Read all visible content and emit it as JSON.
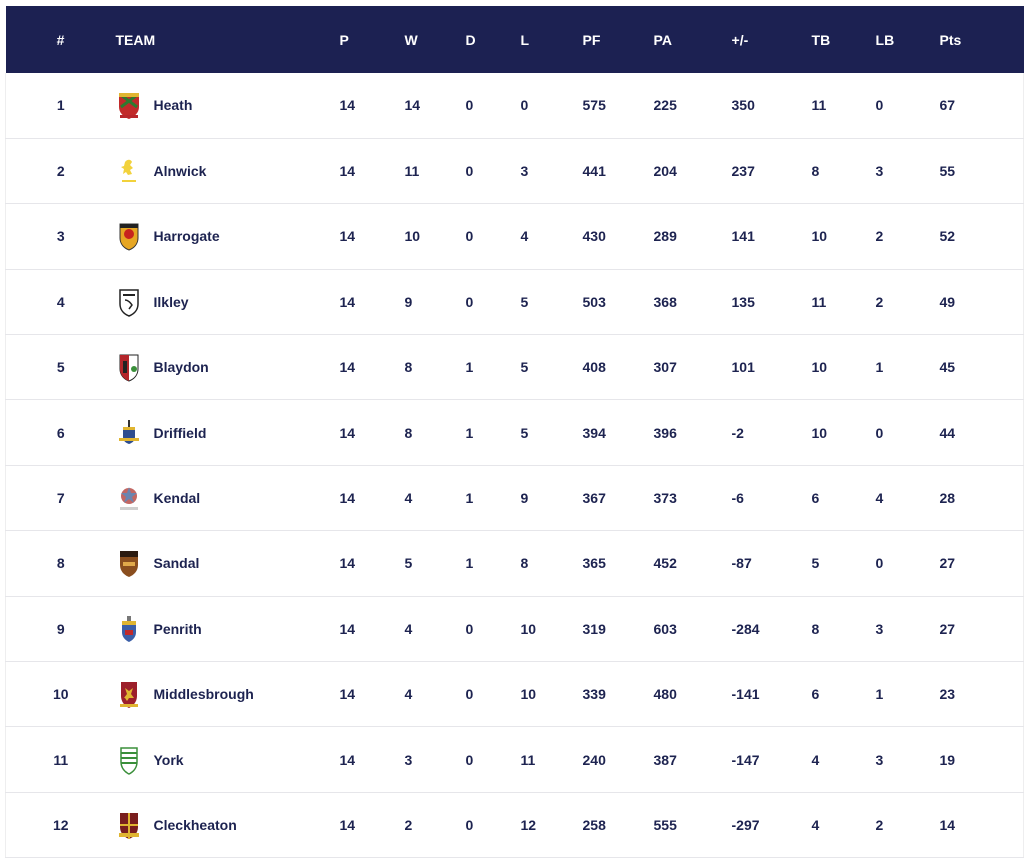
{
  "headers": {
    "pos": "#",
    "team": "TEAM",
    "p": "P",
    "w": "W",
    "d": "D",
    "l": "L",
    "pf": "PF",
    "pa": "PA",
    "diff": "+/-",
    "tb": "TB",
    "lb": "LB",
    "pts": "Pts"
  },
  "rows": [
    {
      "pos": "1",
      "team": "Heath",
      "crest": "heath-crest-icon",
      "p": "14",
      "w": "14",
      "d": "0",
      "l": "0",
      "pf": "575",
      "pa": "225",
      "diff": "350",
      "tb": "11",
      "lb": "0",
      "pts": "67"
    },
    {
      "pos": "2",
      "team": "Alnwick",
      "crest": "alnwick-crest-icon",
      "p": "14",
      "w": "11",
      "d": "0",
      "l": "3",
      "pf": "441",
      "pa": "204",
      "diff": "237",
      "tb": "8",
      "lb": "3",
      "pts": "55"
    },
    {
      "pos": "3",
      "team": "Harrogate",
      "crest": "harrogate-crest-icon",
      "p": "14",
      "w": "10",
      "d": "0",
      "l": "4",
      "pf": "430",
      "pa": "289",
      "diff": "141",
      "tb": "10",
      "lb": "2",
      "pts": "52"
    },
    {
      "pos": "4",
      "team": "Ilkley",
      "crest": "ilkley-crest-icon",
      "p": "14",
      "w": "9",
      "d": "0",
      "l": "5",
      "pf": "503",
      "pa": "368",
      "diff": "135",
      "tb": "11",
      "lb": "2",
      "pts": "49"
    },
    {
      "pos": "5",
      "team": "Blaydon",
      "crest": "blaydon-crest-icon",
      "p": "14",
      "w": "8",
      "d": "1",
      "l": "5",
      "pf": "408",
      "pa": "307",
      "diff": "101",
      "tb": "10",
      "lb": "1",
      "pts": "45"
    },
    {
      "pos": "6",
      "team": "Driffield",
      "crest": "driffield-crest-icon",
      "p": "14",
      "w": "8",
      "d": "1",
      "l": "5",
      "pf": "394",
      "pa": "396",
      "diff": "-2",
      "tb": "10",
      "lb": "0",
      "pts": "44"
    },
    {
      "pos": "7",
      "team": "Kendal",
      "crest": "kendal-crest-icon",
      "p": "14",
      "w": "4",
      "d": "1",
      "l": "9",
      "pf": "367",
      "pa": "373",
      "diff": "-6",
      "tb": "6",
      "lb": "4",
      "pts": "28"
    },
    {
      "pos": "8",
      "team": "Sandal",
      "crest": "sandal-crest-icon",
      "p": "14",
      "w": "5",
      "d": "1",
      "l": "8",
      "pf": "365",
      "pa": "452",
      "diff": "-87",
      "tb": "5",
      "lb": "0",
      "pts": "27"
    },
    {
      "pos": "9",
      "team": "Penrith",
      "crest": "penrith-crest-icon",
      "p": "14",
      "w": "4",
      "d": "0",
      "l": "10",
      "pf": "319",
      "pa": "603",
      "diff": "-284",
      "tb": "8",
      "lb": "3",
      "pts": "27"
    },
    {
      "pos": "10",
      "team": "Middlesbrough",
      "crest": "middlesbrough-crest-icon",
      "p": "14",
      "w": "4",
      "d": "0",
      "l": "10",
      "pf": "339",
      "pa": "480",
      "diff": "-141",
      "tb": "6",
      "lb": "1",
      "pts": "23"
    },
    {
      "pos": "11",
      "team": "York",
      "crest": "york-crest-icon",
      "p": "14",
      "w": "3",
      "d": "0",
      "l": "11",
      "pf": "240",
      "pa": "387",
      "diff": "-147",
      "tb": "4",
      "lb": "3",
      "pts": "19"
    },
    {
      "pos": "12",
      "team": "Cleckheaton",
      "crest": "cleckheaton-crest-icon",
      "p": "14",
      "w": "2",
      "d": "0",
      "l": "12",
      "pf": "258",
      "pa": "555",
      "diff": "-297",
      "tb": "4",
      "lb": "2",
      "pts": "14"
    }
  ],
  "colors": {
    "header_bg": "#1c2152",
    "header_text": "#ffffff",
    "body_text": "#1d2350",
    "row_border": "#e6e6ea"
  }
}
